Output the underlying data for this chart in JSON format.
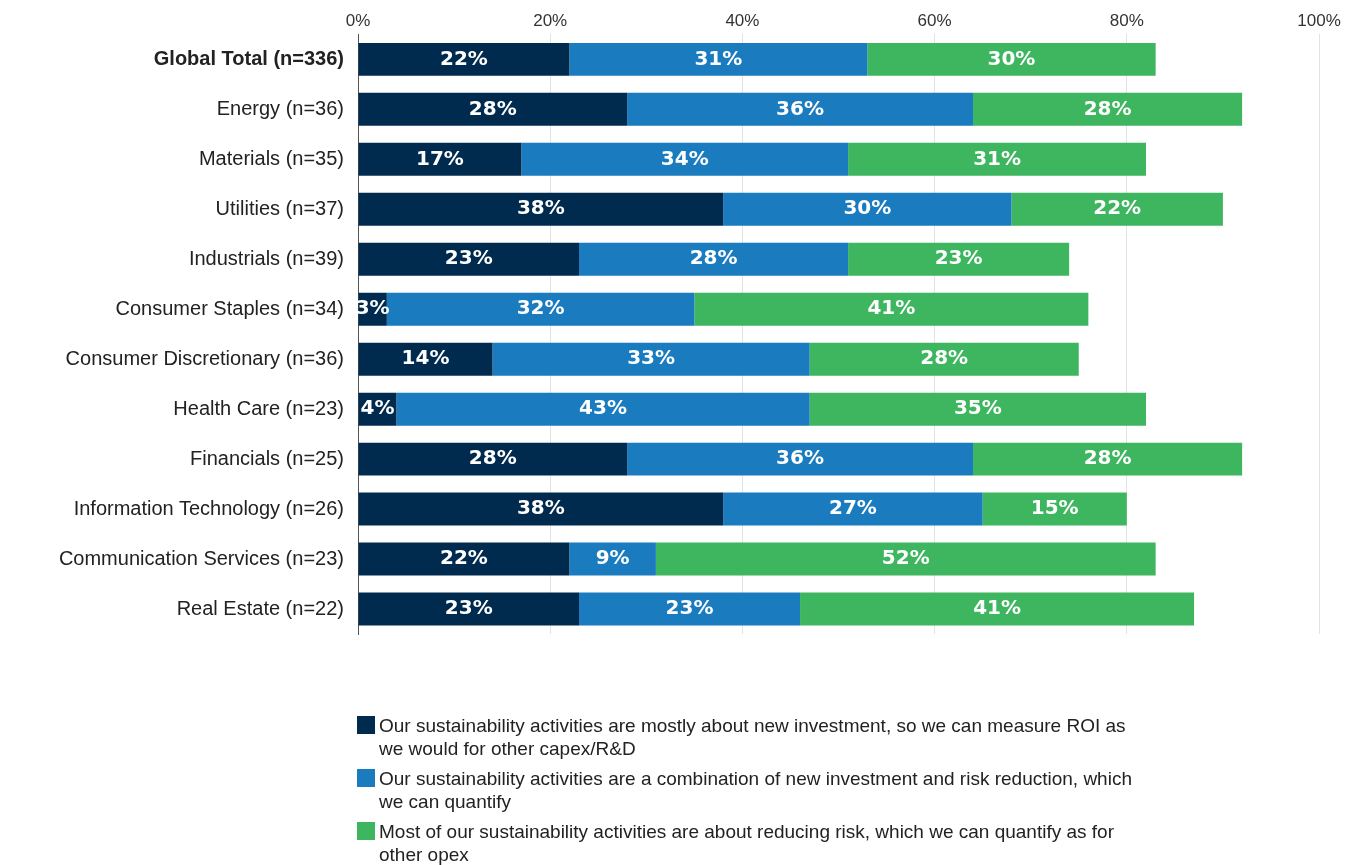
{
  "chart_data": {
    "type": "bar",
    "orientation": "horizontal",
    "stacked": true,
    "categories": [
      "Global Total (n=336)",
      "Energy (n=36)",
      "Materials (n=35)",
      "Utilities (n=37)",
      "Industrials (n=39)",
      "Consumer Staples (n=34)",
      "Consumer Discretionary (n=36)",
      "Health Care (n=23)",
      "Financials (n=25)",
      "Information Technology (n=26)",
      "Communication Services (n=23)",
      "Real Estate (n=22)"
    ],
    "series": [
      {
        "name": "Our sustainability activities are mostly about new investment, so we can measure ROI as we would for other capex/R&D",
        "color": "#002b4f",
        "values": [
          22,
          28,
          17,
          38,
          23,
          3,
          14,
          4,
          28,
          38,
          22,
          23
        ],
        "value_labels": [
          "22%",
          "28%",
          "17%",
          "38%",
          "23%",
          "3%",
          "14%",
          "4%",
          "28%",
          "38%",
          "22%",
          "23%"
        ]
      },
      {
        "name": "Our sustainability activities are a combination of new investment and risk reduction, which we can quantify",
        "color": "#1b7bbf",
        "values": [
          31,
          36,
          34,
          30,
          28,
          32,
          33,
          43,
          36,
          27,
          9,
          23
        ],
        "value_labels": [
          "31%",
          "36%",
          "34%",
          "30%",
          "28%",
          "32%",
          "33%",
          "43%",
          "36%",
          "27%",
          "9%",
          "23%"
        ]
      },
      {
        "name": "Most of our sustainability activities are about reducing risk, which we can quantify as for other opex",
        "color": "#3eb55f",
        "values": [
          30,
          28,
          31,
          22,
          23,
          41,
          28,
          35,
          28,
          15,
          52,
          41
        ],
        "value_labels": [
          "30%",
          "28%",
          "31%",
          "22%",
          "23%",
          "41%",
          "28%",
          "35%",
          "28%",
          "15%",
          "52%",
          "41%"
        ]
      }
    ],
    "xlim": [
      0,
      100
    ],
    "xticks": [
      {
        "value": 0,
        "label": "0%"
      },
      {
        "value": 20,
        "label": "20%"
      },
      {
        "value": 40,
        "label": "40%"
      },
      {
        "value": 60,
        "label": "60%"
      },
      {
        "value": 80,
        "label": "80%"
      },
      {
        "value": 100,
        "label": "100%"
      }
    ],
    "grid": "x",
    "legend": "bottom"
  }
}
